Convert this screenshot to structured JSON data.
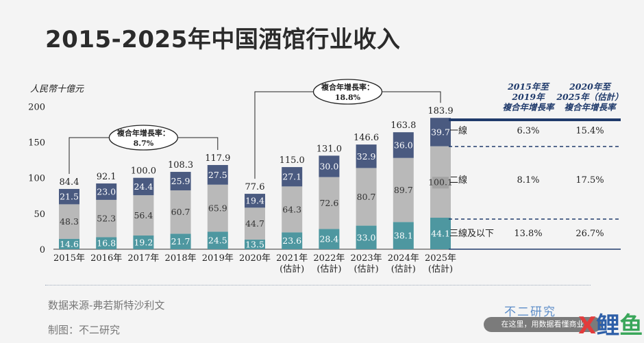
{
  "title": "2015-2025年中国酒馆行业收入",
  "footer": {
    "source": "数据来源-弗若斯特沙利文",
    "maker": "制图：不二研究",
    "brand": "不二研究",
    "banner": "在这里，用数据看懂商业",
    "logo": [
      "X",
      "鲤",
      "鱼"
    ]
  },
  "chart_data": {
    "type": "bar",
    "stacked": true,
    "ylabel": "人民幣十億元",
    "ylim": [
      0,
      200
    ],
    "yticks": [
      0,
      50,
      100,
      150,
      200
    ],
    "categories": [
      [
        "2015年"
      ],
      [
        "2016年"
      ],
      [
        "2017年"
      ],
      [
        "2018年"
      ],
      [
        "2019年"
      ],
      [
        "2020年"
      ],
      [
        "2021年",
        "(估計)"
      ],
      [
        "2022年",
        "(估計)"
      ],
      [
        "2023年",
        "(估計)"
      ],
      [
        "2024年",
        "(估計)"
      ],
      [
        "2025年",
        "(估計)"
      ]
    ],
    "totals": [
      "84.4",
      "92.1",
      "100.0",
      "108.3",
      "117.9",
      "77.6",
      "115.0",
      "131.0",
      "146.6",
      "163.8",
      "183.9"
    ],
    "series": [
      {
        "name": "三線及以下",
        "color": "#4e97a0",
        "values": [
          14.6,
          16.8,
          19.2,
          21.7,
          24.5,
          13.5,
          23.6,
          28.4,
          33.0,
          38.1,
          44.1
        ]
      },
      {
        "name": "二線",
        "color": "#b9b9b9",
        "values": [
          48.3,
          52.3,
          56.4,
          60.7,
          65.9,
          44.7,
          64.3,
          72.6,
          80.7,
          89.7,
          100.1
        ]
      },
      {
        "name": "一線",
        "color": "#4a5a80",
        "values": [
          21.5,
          23.0,
          24.4,
          25.9,
          27.5,
          19.4,
          27.1,
          30.0,
          32.9,
          36.0,
          39.7
        ]
      }
    ],
    "annotations": [
      {
        "text": [
          "複合年增長率：",
          "8.7%"
        ],
        "from": 0,
        "to": 4
      },
      {
        "text": [
          "複合年增長率：",
          "18.8%"
        ],
        "from": 5,
        "to": 10
      }
    ],
    "cagr_table": {
      "headers": [
        [
          "2015年至",
          "2019年",
          "複合年增長率"
        ],
        [
          "2020年至",
          "2025年（估計）",
          "複合年增長率"
        ]
      ],
      "rows": [
        {
          "label": "一線",
          "v1": "6.3%",
          "v2": "15.4%"
        },
        {
          "label": "二線",
          "v1": "8.1%",
          "v2": "17.5%"
        },
        {
          "label": "三線及以下",
          "v1": "13.8%",
          "v2": "26.7%"
        }
      ]
    }
  }
}
